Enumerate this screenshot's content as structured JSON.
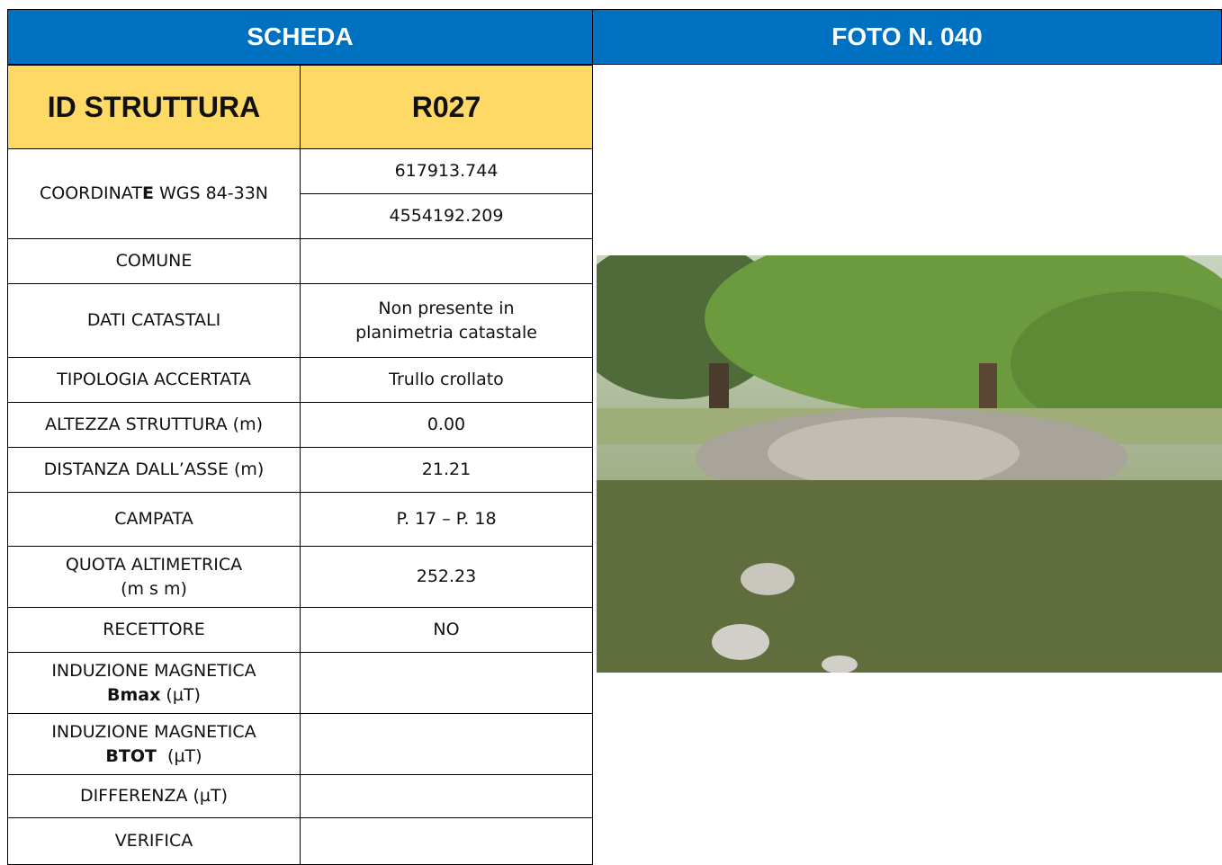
{
  "header": {
    "left": "SCHEDA",
    "right": "FOTO N. 040"
  },
  "id": {
    "label": "ID STRUTTURA",
    "value": "R027"
  },
  "rows": [
    {
      "label": [
        "COORDINAT",
        "E",
        " WGS 84-33N"
      ],
      "values": [
        "617913.744",
        "4554192.209"
      ]
    },
    {
      "label": [
        "COMUNE"
      ]
    },
    {
      "label": [
        "DATI CATASTALI"
      ],
      "values": [
        "Non presente in",
        "planimetria catastale"
      ]
    },
    {
      "label": [
        "TIPOLOGIA ACCERTATA"
      ],
      "values": [
        "Trullo crollato"
      ]
    },
    {
      "label": [
        "ALTEZZA STRUTTURA (m)"
      ],
      "values": [
        "0.00"
      ]
    },
    {
      "label": [
        "DISTANZA DALL’ASSE (m)"
      ],
      "values": [
        "21.21"
      ]
    },
    {
      "label": [
        "CAMPATA"
      ],
      "values": [
        "P. 17 – P. 18"
      ]
    },
    {
      "label": [
        "QUOTA ALTIMETRICA",
        "(m s m)"
      ],
      "values": [
        "252.23"
      ]
    },
    {
      "label": [
        "RECETTORE"
      ],
      "values": [
        "NO"
      ]
    },
    {
      "label": [
        "INDUZIONE MAGNETICA",
        "Bmax",
        " (µT)"
      ]
    },
    {
      "label": [
        "INDUZIONE MAGNETICA",
        "BTOT",
        "  (µT)"
      ]
    },
    {
      "label": [
        "DIFFERENZA (µT)"
      ]
    },
    {
      "label": [
        "VERIFICA"
      ]
    }
  ]
}
